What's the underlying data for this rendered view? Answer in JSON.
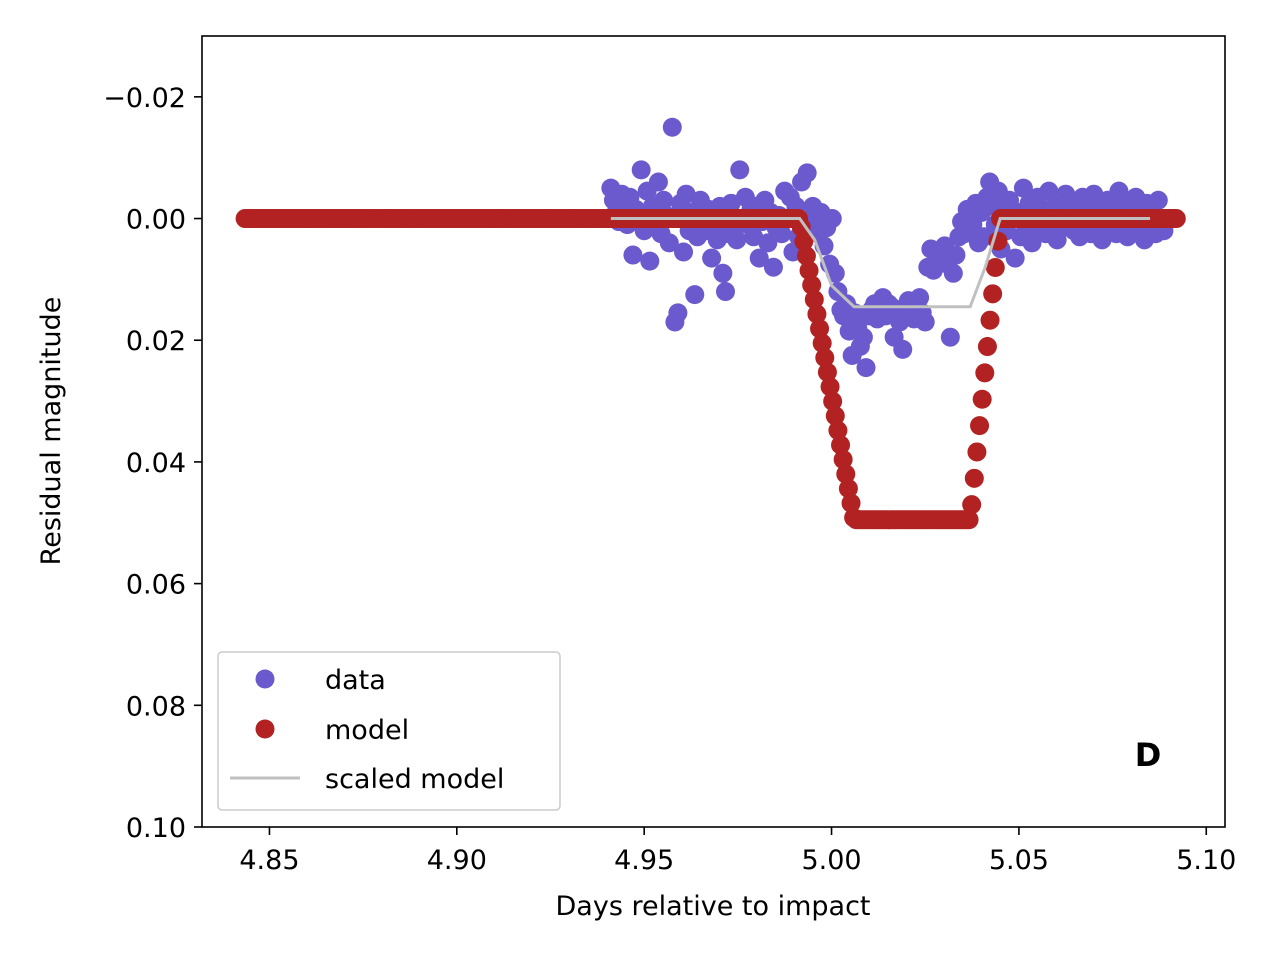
{
  "chart_data": {
    "type": "scatter",
    "title": "",
    "xlabel": "Days relative to impact",
    "ylabel": "Residual magnitude",
    "xlim": [
      4.832,
      5.105
    ],
    "ylim": [
      0.1,
      -0.03
    ],
    "y_inverted": true,
    "grid": false,
    "panel_letter": "D",
    "x_ticks": [
      {
        "value": 4.85,
        "label": "4.85"
      },
      {
        "value": 4.9,
        "label": "4.90"
      },
      {
        "value": 4.95,
        "label": "4.95"
      },
      {
        "value": 5.0,
        "label": "5.00"
      },
      {
        "value": 5.05,
        "label": "5.05"
      },
      {
        "value": 5.1,
        "label": "5.10"
      }
    ],
    "y_ticks": [
      {
        "value": -0.02,
        "label": "−0.02"
      },
      {
        "value": 0.0,
        "label": "0.00"
      },
      {
        "value": 0.02,
        "label": "0.02"
      },
      {
        "value": 0.04,
        "label": "0.04"
      },
      {
        "value": 0.06,
        "label": "0.06"
      },
      {
        "value": 0.08,
        "label": "0.08"
      },
      {
        "value": 0.1,
        "label": "0.10"
      }
    ],
    "legend": {
      "location": "lower-left",
      "entries": [
        {
          "label": "data",
          "marker": "circle",
          "color": "#6a5acd"
        },
        {
          "label": "model",
          "marker": "circle",
          "color": "#b22222"
        },
        {
          "label": "scaled model",
          "marker": "line",
          "color": "#c0c0c0"
        }
      ]
    },
    "series": [
      {
        "name": "data",
        "kind": "scatter",
        "color": "#6a5acd",
        "points": [
          [
            4.9411,
            -0.005
          ],
          [
            4.9418,
            -0.003
          ],
          [
            4.9425,
            -0.001
          ],
          [
            4.9432,
            0.0005
          ],
          [
            4.944,
            -0.004
          ],
          [
            4.9448,
            -0.002
          ],
          [
            4.9455,
            0.001
          ],
          [
            4.9462,
            -0.0035
          ],
          [
            4.947,
            0.006
          ],
          [
            4.9478,
            -0.0015
          ],
          [
            4.9485,
            0.0
          ],
          [
            4.9492,
            -0.008
          ],
          [
            4.95,
            0.002
          ],
          [
            4.9508,
            -0.0045
          ],
          [
            4.9515,
            0.007
          ],
          [
            4.9522,
            -0.002
          ],
          [
            4.953,
            0.001
          ],
          [
            4.9538,
            -0.006
          ],
          [
            4.9545,
            0.0025
          ],
          [
            4.9552,
            -0.003
          ],
          [
            4.956,
            -0.0005
          ],
          [
            4.9567,
            0.004
          ],
          [
            4.9575,
            -0.015
          ],
          [
            4.9582,
            0.017
          ],
          [
            4.959,
            0.0155
          ],
          [
            4.9597,
            -0.0025
          ],
          [
            4.9605,
            0.0055
          ],
          [
            4.9612,
            -0.004
          ],
          [
            4.962,
            0.002
          ],
          [
            4.9627,
            -0.001
          ],
          [
            4.9635,
            0.0125
          ],
          [
            4.9642,
            0.003
          ],
          [
            4.965,
            -0.003
          ],
          [
            4.9657,
            0.0
          ],
          [
            4.9665,
            0.002
          ],
          [
            4.9672,
            -0.0015
          ],
          [
            4.968,
            0.0065
          ],
          [
            4.9687,
            0.001
          ],
          [
            4.9695,
            0.0035
          ],
          [
            4.9702,
            -0.002
          ],
          [
            4.971,
            0.009
          ],
          [
            4.9717,
            0.012
          ],
          [
            4.9725,
            0.0025
          ],
          [
            4.9732,
            -0.0025
          ],
          [
            4.974,
            0.0015
          ],
          [
            4.9747,
            0.0035
          ],
          [
            4.9755,
            -0.008
          ],
          [
            4.9762,
            0.0005
          ],
          [
            4.977,
            -0.0035
          ],
          [
            4.9777,
            0.001
          ],
          [
            4.9785,
            -0.0015
          ],
          [
            4.9792,
            0.003
          ],
          [
            4.98,
            -0.002
          ],
          [
            4.9807,
            0.0065
          ],
          [
            4.9815,
            0.0005
          ],
          [
            4.9822,
            -0.003
          ],
          [
            4.983,
            0.004
          ],
          [
            4.9837,
            -0.001
          ],
          [
            4.9845,
            0.008
          ],
          [
            4.9852,
            0.0015
          ],
          [
            4.986,
            -0.0005
          ],
          [
            4.9867,
            0.0025
          ],
          [
            4.9875,
            -0.0045
          ],
          [
            4.9882,
            0.0
          ],
          [
            4.989,
            -0.0035
          ],
          [
            4.9897,
            0.0055
          ],
          [
            4.9905,
            -0.002
          ],
          [
            4.9912,
            0.003
          ],
          [
            4.992,
            -0.006
          ],
          [
            4.9927,
            0.0015
          ],
          [
            4.9935,
            -0.0075
          ],
          [
            4.9942,
            0.001
          ],
          [
            4.995,
            -0.002
          ],
          [
            4.9957,
            -0.0005
          ],
          [
            4.9965,
            0.0025
          ],
          [
            4.9972,
            -0.001
          ],
          [
            4.998,
            0.0045
          ],
          [
            4.9987,
            0.0015
          ],
          [
            4.9995,
            0.0075
          ],
          [
            5.0002,
            0.0
          ],
          [
            5.001,
            0.009
          ],
          [
            5.0017,
            0.012
          ],
          [
            5.0025,
            0.015
          ],
          [
            5.0032,
            0.016
          ],
          [
            5.004,
            0.014
          ],
          [
            5.0047,
            0.0185
          ],
          [
            5.0055,
            0.0225
          ],
          [
            5.0062,
            0.0155
          ],
          [
            5.007,
            0.018
          ],
          [
            5.0077,
            0.021
          ],
          [
            5.0085,
            0.0195
          ],
          [
            5.0092,
            0.0245
          ],
          [
            5.01,
            0.016
          ],
          [
            5.0107,
            0.015
          ],
          [
            5.0115,
            0.014
          ],
          [
            5.0122,
            0.0165
          ],
          [
            5.013,
            0.0155
          ],
          [
            5.0137,
            0.013
          ],
          [
            5.0145,
            0.016
          ],
          [
            5.0152,
            0.014
          ],
          [
            5.016,
            0.0145
          ],
          [
            5.0167,
            0.0195
          ],
          [
            5.0175,
            0.015
          ],
          [
            5.0182,
            0.017
          ],
          [
            5.019,
            0.0215
          ],
          [
            5.0197,
            0.016
          ],
          [
            5.0205,
            0.0135
          ],
          [
            5.0212,
            0.015
          ],
          [
            5.022,
            0.0165
          ],
          [
            5.0227,
            0.0145
          ],
          [
            5.0235,
            0.013
          ],
          [
            5.0242,
            0.0155
          ],
          [
            5.025,
            0.017
          ],
          [
            5.0257,
            0.008
          ],
          [
            5.0265,
            0.005
          ],
          [
            5.0272,
            0.0085
          ],
          [
            5.028,
            0.007
          ],
          [
            5.0287,
            0.006
          ],
          [
            5.0295,
            0.0055
          ],
          [
            5.0302,
            0.0045
          ],
          [
            5.031,
            0.0075
          ],
          [
            5.0317,
            0.0195
          ],
          [
            5.0325,
            0.009
          ],
          [
            5.0332,
            0.006
          ],
          [
            5.034,
            0.003
          ],
          [
            5.0347,
            0.0005
          ],
          [
            5.0355,
            0.0025
          ],
          [
            5.0362,
            -0.0015
          ],
          [
            5.037,
            0.002
          ],
          [
            5.0377,
            0.001
          ],
          [
            5.0385,
            -0.0025
          ],
          [
            5.0392,
            0.004
          ],
          [
            5.04,
            -0.001
          ],
          [
            5.0407,
            0.003
          ],
          [
            5.0415,
            -0.0035
          ],
          [
            5.0422,
            -0.006
          ],
          [
            5.043,
            -0.002
          ],
          [
            5.0437,
            0.001
          ],
          [
            5.0445,
            -0.0045
          ],
          [
            5.0452,
            0.005
          ],
          [
            5.046,
            -0.0015
          ],
          [
            5.0467,
            0.002
          ],
          [
            5.0475,
            -0.003
          ],
          [
            5.0482,
            0.0
          ],
          [
            5.049,
            0.0065
          ],
          [
            5.0497,
            -0.001
          ],
          [
            5.0505,
            0.003
          ],
          [
            5.0512,
            -0.005
          ],
          [
            5.052,
            0.0015
          ],
          [
            5.0527,
            -0.0025
          ],
          [
            5.0535,
            0.004
          ],
          [
            5.0542,
            0.0
          ],
          [
            5.055,
            -0.0035
          ],
          [
            5.0557,
            0.002
          ],
          [
            5.0565,
            -0.0015
          ],
          [
            5.0572,
            0.0025
          ],
          [
            5.058,
            -0.0045
          ],
          [
            5.0587,
            0.001
          ],
          [
            5.0595,
            -0.002
          ],
          [
            5.0602,
            0.0035
          ],
          [
            5.061,
            -0.0005
          ],
          [
            5.0617,
            0.0015
          ],
          [
            5.0625,
            -0.004
          ],
          [
            5.0632,
            0.0
          ],
          [
            5.064,
            -0.0025
          ],
          [
            5.0647,
            0.002
          ],
          [
            5.0655,
            -0.001
          ],
          [
            5.0662,
            0.003
          ],
          [
            5.067,
            -0.0035
          ],
          [
            5.0677,
            0.0005
          ],
          [
            5.0685,
            -0.0015
          ],
          [
            5.0692,
            0.0025
          ],
          [
            5.07,
            -0.004
          ],
          [
            5.0707,
            0.001
          ],
          [
            5.0715,
            -0.002
          ],
          [
            5.0722,
            0.0035
          ],
          [
            5.073,
            0.0
          ],
          [
            5.0737,
            -0.003
          ],
          [
            5.0745,
            0.0015
          ],
          [
            5.0752,
            -0.001
          ],
          [
            5.076,
            0.0025
          ],
          [
            5.0767,
            -0.0045
          ],
          [
            5.0775,
            0.0005
          ],
          [
            5.0782,
            -0.002
          ],
          [
            5.079,
            0.003
          ],
          [
            5.0797,
            -0.0015
          ],
          [
            5.0805,
            0.001
          ],
          [
            5.0812,
            -0.0035
          ],
          [
            5.082,
            0.002
          ],
          [
            5.0827,
            -0.0005
          ],
          [
            5.0835,
            0.0035
          ],
          [
            5.0842,
            -0.0025
          ],
          [
            5.085,
            0.0015
          ],
          [
            5.0857,
            -0.001
          ],
          [
            5.0865,
            0.0025
          ],
          [
            5.0872,
            -0.003
          ],
          [
            5.088,
            0.0
          ],
          [
            5.0887,
            0.002
          ]
        ]
      },
      {
        "name": "model",
        "kind": "scatter",
        "color": "#b22222",
        "x_range": [
          4.8435,
          5.0925
        ],
        "x_step": 0.0007,
        "profile": {
          "baseline": 0.0,
          "depth": 0.0495,
          "ingress": [
            4.9915,
            5.006
          ],
          "egress": [
            5.037,
            5.045
          ]
        }
      },
      {
        "name": "scaled model",
        "kind": "line",
        "color": "#c0c0c0",
        "points": [
          [
            4.9411,
            0.0
          ],
          [
            4.9915,
            0.0
          ],
          [
            4.9955,
            0.0035
          ],
          [
            5.0,
            0.011
          ],
          [
            5.006,
            0.0145
          ],
          [
            5.037,
            0.0145
          ],
          [
            5.041,
            0.008
          ],
          [
            5.045,
            0.0
          ],
          [
            5.085,
            0.0
          ]
        ]
      }
    ]
  }
}
